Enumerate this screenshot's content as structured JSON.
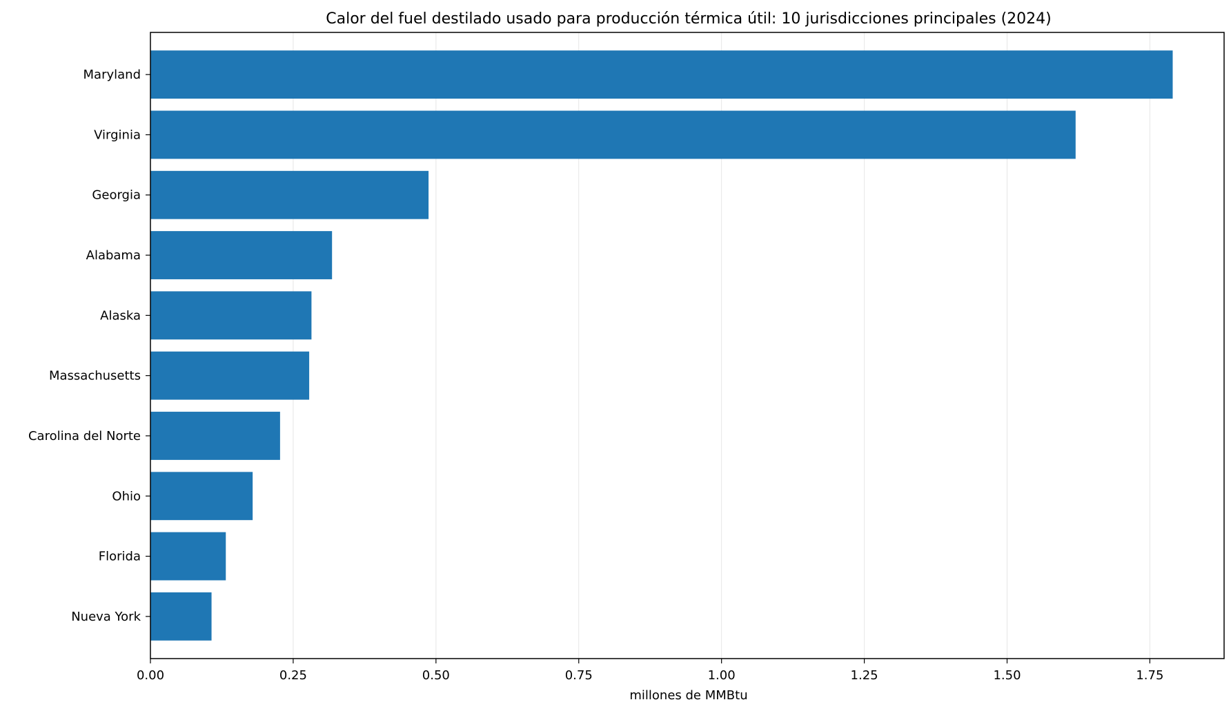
{
  "chart_data": {
    "type": "bar",
    "orientation": "horizontal",
    "title": "Calor del fuel destilado usado para producción térmica útil: 10 jurisdicciones principales (2024)",
    "xlabel": "millones de MMBtu",
    "ylabel": "",
    "categories": [
      "Maryland",
      "Virginia",
      "Georgia",
      "Alabama",
      "Alaska",
      "Massachusetts",
      "Carolina del Norte",
      "Ohio",
      "Florida",
      "Nueva York"
    ],
    "values": [
      1.79,
      1.62,
      0.487,
      0.318,
      0.282,
      0.278,
      0.227,
      0.179,
      0.132,
      0.107
    ],
    "xlim": [
      0,
      1.88
    ],
    "xticks": [
      0.0,
      0.25,
      0.5,
      0.75,
      1.0,
      1.25,
      1.5,
      1.75
    ],
    "xtick_labels": [
      "0.00",
      "0.25",
      "0.50",
      "0.75",
      "1.00",
      "1.25",
      "1.50",
      "1.75"
    ],
    "grid": "x",
    "bar_color": "#1f77b4",
    "grid_color": "#e6e6e6"
  }
}
